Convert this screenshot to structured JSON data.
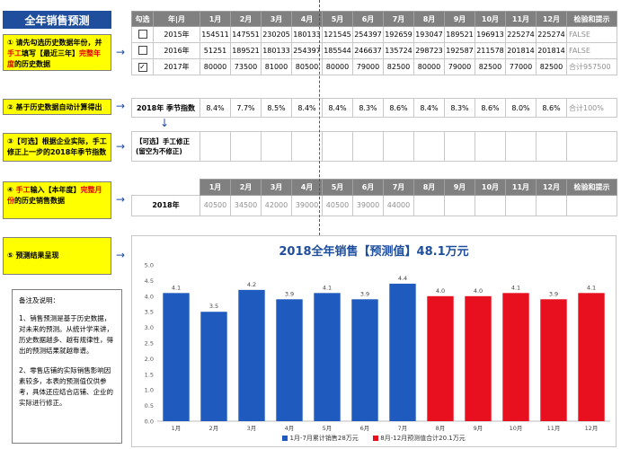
{
  "title": "全年销售预测",
  "steps": {
    "s1": {
      "prefix": "① 请先勾选历史数据年份，并",
      "red1": "手工",
      "mid": "填写【最近三年】",
      "red2": "完整年度",
      "suffix": "的历史数据"
    },
    "s2": "② 基于历史数据自动计算得出",
    "s3": "③【可选】根据企业实际，手工修正上一步的2018年季节指数",
    "s4": {
      "prefix": "④ ",
      "red1": "手工",
      "mid": "输入【本年度】",
      "red2": "完整月份",
      "suffix": "的历史销售数据"
    },
    "s5": "⑤ 预测结果呈现"
  },
  "history_table": {
    "headers": [
      "勾选",
      "年|月",
      "1月",
      "2月",
      "3月",
      "4月",
      "5月",
      "6月",
      "7月",
      "8月",
      "9月",
      "10月",
      "11月",
      "12月",
      "检验和提示"
    ],
    "rows": [
      {
        "checked": "",
        "year": "2015年",
        "values": [
          "154511",
          "147551",
          "230205",
          "180133",
          "121545",
          "254397",
          "192659",
          "193047",
          "189521",
          "196913",
          "225274",
          "225274"
        ],
        "check": "FALSE"
      },
      {
        "checked": "",
        "year": "2016年",
        "values": [
          "51251",
          "189521",
          "180133",
          "254397",
          "185544",
          "246637",
          "135724",
          "298723",
          "192587",
          "211578",
          "201814",
          "201814"
        ],
        "check": "FALSE"
      },
      {
        "checked": "✓",
        "year": "2017年",
        "values": [
          "80000",
          "73500",
          "81000",
          "80500",
          "80000",
          "79000",
          "82500",
          "80000",
          "79000",
          "82500",
          "77000",
          "82500"
        ],
        "check": "合计957500"
      }
    ]
  },
  "season_index": {
    "label": "2018年 季节指数",
    "values": [
      "8.4%",
      "7.7%",
      "8.5%",
      "8.4%",
      "8.4%",
      "8.3%",
      "8.6%",
      "8.4%",
      "8.3%",
      "8.6%",
      "8.0%",
      "8.6%"
    ],
    "check": "合计100%"
  },
  "manual_adjust": {
    "line1": "【可选】手工修正",
    "line2": "(留空为不修正)"
  },
  "this_year_table": {
    "headers": [
      "1月",
      "2月",
      "3月",
      "4月",
      "5月",
      "6月",
      "7月",
      "8月",
      "9月",
      "10月",
      "11月",
      "12月",
      "检验和提示"
    ],
    "year": "2018年",
    "values": [
      "40500",
      "34500",
      "42000",
      "39000",
      "40500",
      "39000",
      "44000",
      "",
      "",
      "",
      "",
      ""
    ]
  },
  "notes": {
    "title": "备注及说明：",
    "p1": "1、销售预测是基于历史数据，对未来的预测。从统计学来讲，历史数据越多、越有规律性，得出的预测结果就越靠谱。",
    "p2": "2、零售店铺的实际销售影响因素较多，本表的预测值仅供参考，具体还应结合店铺、企业的实际进行修正。"
  },
  "chart_data": {
    "type": "bar",
    "title": "2018全年销售【预测值】48.1万元",
    "categories": [
      "1月",
      "2月",
      "3月",
      "4月",
      "5月",
      "6月",
      "7月",
      "8月",
      "9月",
      "10月",
      "11月",
      "12月"
    ],
    "values": [
      4.1,
      3.5,
      4.2,
      3.9,
      4.1,
      3.9,
      4.4,
      4.0,
      4.0,
      4.1,
      3.9,
      4.1
    ],
    "ylim": [
      0,
      5.0
    ],
    "yticks": [
      "0.0",
      "0.5",
      "1.0",
      "1.5",
      "2.0",
      "2.5",
      "3.0",
      "3.5",
      "4.0",
      "4.5",
      "5.0"
    ],
    "split_index": 7,
    "colors": {
      "actual": "#1f5bbf",
      "forecast": "#e8101e"
    },
    "legend": [
      {
        "name": "1月-7月累计销售28万元",
        "color": "#1f5bbf"
      },
      {
        "name": "8月-12月预测值合计20.1万元",
        "color": "#e8101e"
      }
    ]
  }
}
